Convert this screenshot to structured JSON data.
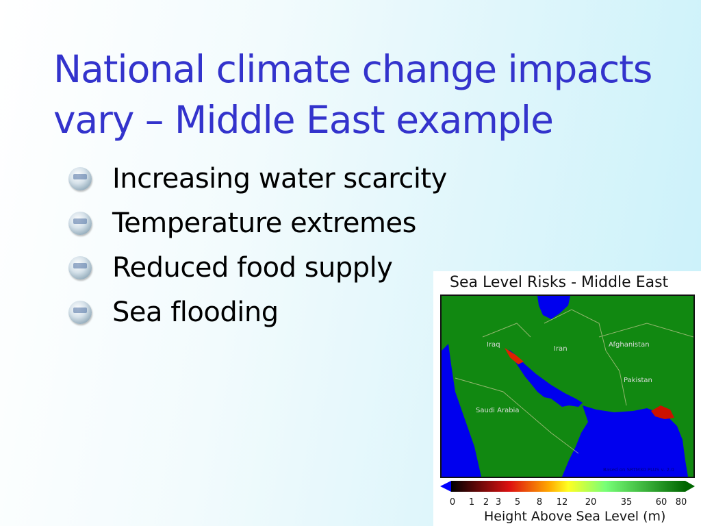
{
  "title": {
    "line1": "National climate change impacts",
    "line2": "vary – Middle East example"
  },
  "bullets": [
    {
      "icon": "globe-bullet-icon",
      "text": "Increasing water scarcity"
    },
    {
      "icon": "globe-bullet-icon",
      "text": "Temperature extremes"
    },
    {
      "icon": "globe-bullet-icon",
      "text": "Reduced food supply"
    },
    {
      "icon": "globe-bullet-icon",
      "text": "Sea flooding"
    }
  ],
  "map": {
    "title": "Sea Level Risks - Middle East",
    "labels": {
      "iraq": "Iraq",
      "iran": "Iran",
      "afghanistan": "Afghanistan",
      "pakistan": "Pakistan",
      "saudi": "Saudi Arabia"
    },
    "credit": "Based on SRTM30 PLUS v. 2.0",
    "colors": {
      "sea": "#0000ee",
      "land": "#118811"
    },
    "colorbar": {
      "ticks": [
        "0",
        "1",
        "2",
        "3",
        "5",
        "8",
        "12",
        "20",
        "35",
        "60",
        "80"
      ],
      "label": "Height Above Sea Level (m)"
    }
  }
}
